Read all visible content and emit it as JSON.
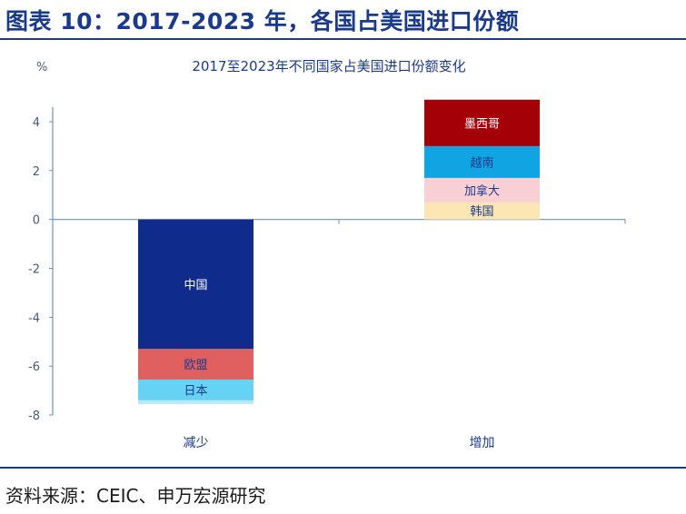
{
  "figure": {
    "title": "图表 10：2017-2023 年，各国占美国进口份额",
    "source": "资料来源：CEIC、申万宏源研究"
  },
  "chart_data": {
    "type": "bar",
    "stacked": true,
    "title": "2017至2023年不同国家占美国进口份额变化",
    "ylabel": "%",
    "xlabel": "",
    "ylim": [
      -8,
      5
    ],
    "yticks": [
      4,
      2,
      0,
      -2,
      -4,
      -6,
      -8
    ],
    "grid": false,
    "categories": [
      "减少",
      "增加"
    ],
    "stacks": [
      {
        "category": "减少",
        "segments": [
          {
            "label": "中国",
            "value": -5.3,
            "color": "#0f2c8c",
            "text_color": "#ffffff"
          },
          {
            "label": "欧盟",
            "value": -1.25,
            "color": "#e0605f",
            "text_color": "#1a3a8c"
          },
          {
            "label": "日本",
            "value": -0.85,
            "color": "#66d2f4",
            "text_color": "#1a3a8c"
          },
          {
            "label": "",
            "value": -0.15,
            "color": "#b9eafa",
            "text_color": "#1a3a8c"
          }
        ]
      },
      {
        "category": "增加",
        "segments": [
          {
            "label": "韩国",
            "value": 0.7,
            "color": "#fbe6b4",
            "text_color": "#1a3a8c"
          },
          {
            "label": "加拿大",
            "value": 1.0,
            "color": "#f8d0d4",
            "text_color": "#1a3a8c"
          },
          {
            "label": "越南",
            "value": 1.3,
            "color": "#10a4e2",
            "text_color": "#1a3a8c"
          },
          {
            "label": "墨西哥",
            "value": 1.9,
            "color": "#a30008",
            "text_color": "#ffffff"
          }
        ]
      }
    ]
  }
}
